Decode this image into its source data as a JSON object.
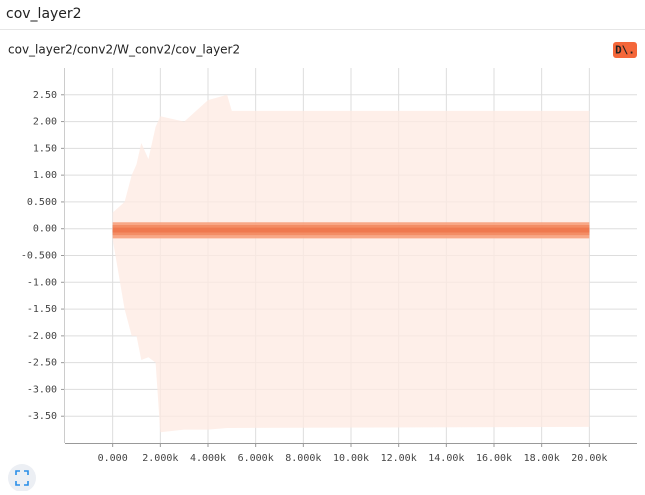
{
  "header": {
    "title": "cov_layer2"
  },
  "chart_data": {
    "type": "distribution",
    "title": "cov_layer2/conv2/W_conv2/cov_layer2",
    "button_label": "D\\.",
    "xlim": [
      -2000,
      22000
    ],
    "ylim": [
      -4,
      3
    ],
    "grid": true,
    "xticks": [
      {
        "value": 0,
        "label": "0.000"
      },
      {
        "value": 2000,
        "label": "2.000k"
      },
      {
        "value": 4000,
        "label": "4.000k"
      },
      {
        "value": 6000,
        "label": "6.000k"
      },
      {
        "value": 8000,
        "label": "8.000k"
      },
      {
        "value": 10000,
        "label": "10.00k"
      },
      {
        "value": 12000,
        "label": "12.00k"
      },
      {
        "value": 14000,
        "label": "14.00k"
      },
      {
        "value": 16000,
        "label": "16.00k"
      },
      {
        "value": 18000,
        "label": "18.00k"
      },
      {
        "value": 20000,
        "label": "20.00k"
      }
    ],
    "yticks": [
      {
        "value": 2.5,
        "label": "2.50"
      },
      {
        "value": 2,
        "label": "2.00"
      },
      {
        "value": 1.5,
        "label": "1.50"
      },
      {
        "value": 1,
        "label": "1.00"
      },
      {
        "value": 0.5,
        "label": "0.500"
      },
      {
        "value": 0,
        "label": "0.00"
      },
      {
        "value": -0.5,
        "label": "-0.500"
      },
      {
        "value": -1,
        "label": "-1.00"
      },
      {
        "value": -1.5,
        "label": "-1.50"
      },
      {
        "value": -2,
        "label": "-2.00"
      },
      {
        "value": -2.5,
        "label": "-2.50"
      },
      {
        "value": -3,
        "label": "-3.00"
      },
      {
        "value": -3.5,
        "label": "-3.50"
      }
    ],
    "bands": [
      {
        "color": "#fde9e1",
        "x": [
          0,
          500,
          800,
          1000,
          1200,
          1500,
          1800,
          2000,
          3000,
          4000,
          4800,
          5000,
          20000
        ],
        "upper": [
          0.3,
          0.5,
          1.0,
          1.2,
          1.6,
          1.3,
          1.9,
          2.1,
          2.0,
          2.4,
          2.5,
          2.2,
          2.2
        ],
        "lower": [
          -0.2,
          -1.5,
          -2.0,
          -2.0,
          -2.45,
          -2.4,
          -2.5,
          -3.8,
          -3.75,
          -3.75,
          -3.72,
          -3.72,
          -3.7
        ]
      },
      {
        "color": "#f7a07c",
        "x": [
          0,
          20000
        ],
        "upper": [
          0.12,
          0.12
        ],
        "lower": [
          -0.18,
          -0.18
        ]
      },
      {
        "color": "#f28a62",
        "x": [
          0,
          20000
        ],
        "upper": [
          0.07,
          0.07
        ],
        "lower": [
          -0.12,
          -0.12
        ]
      },
      {
        "color": "#ee774c",
        "x": [
          0,
          20000
        ],
        "upper": [
          0.02,
          0.02
        ],
        "lower": [
          -0.07,
          -0.07
        ]
      }
    ]
  }
}
